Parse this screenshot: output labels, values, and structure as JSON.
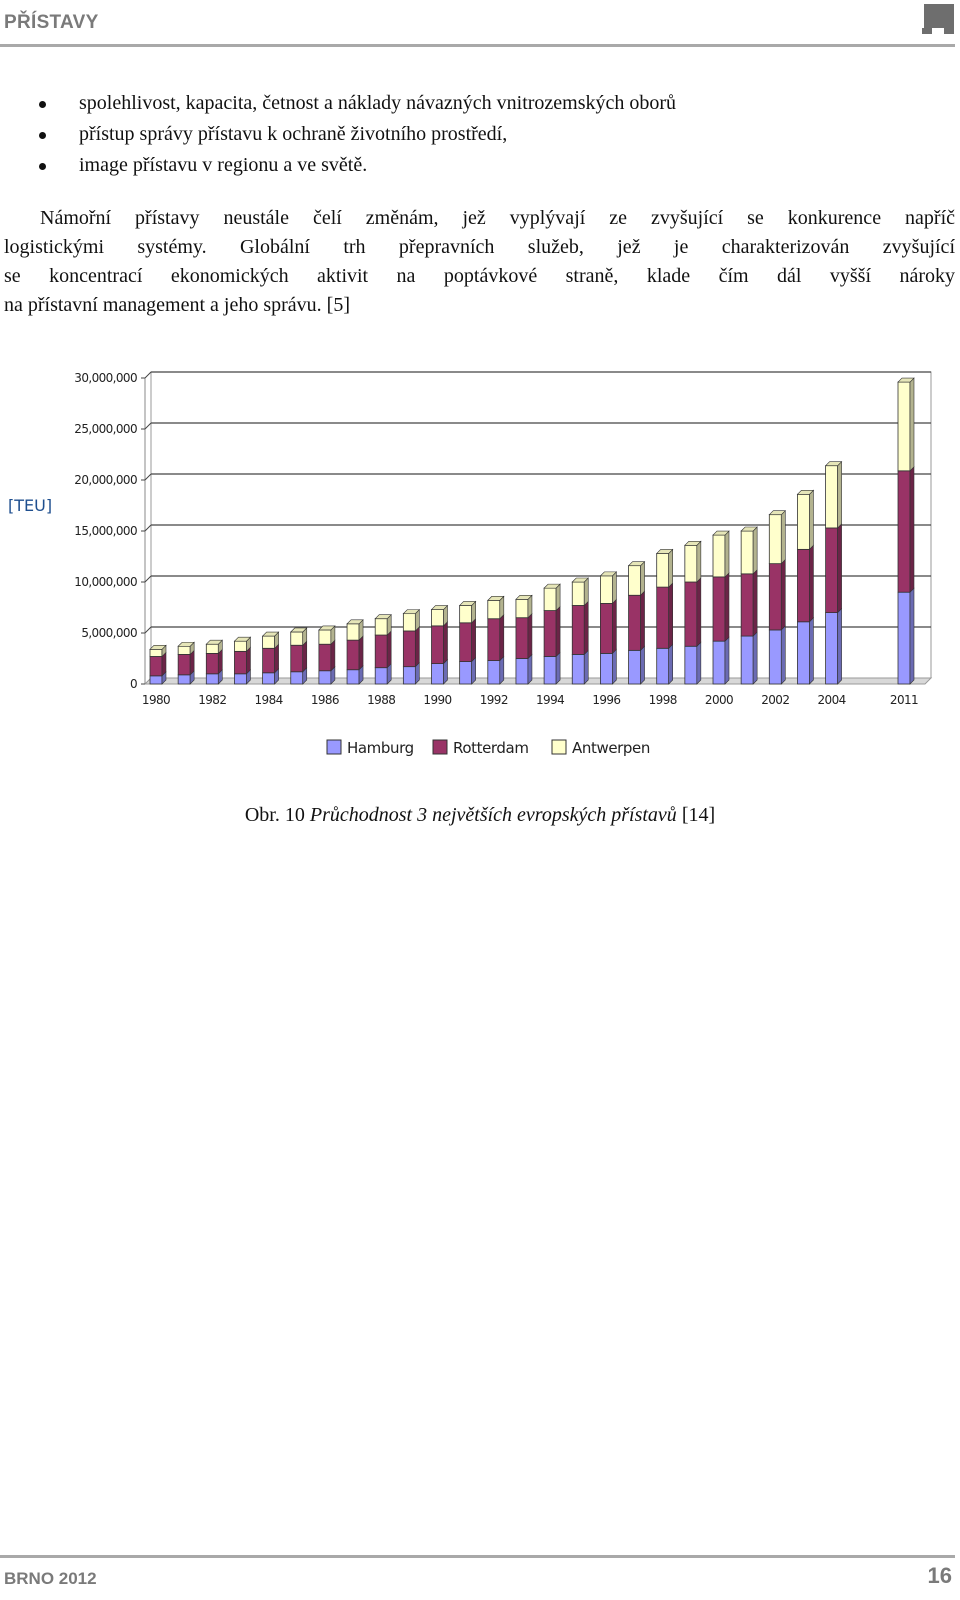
{
  "header": {
    "running_title": "PŘÍSTAVY"
  },
  "bullets": [
    "spolehlivost, kapacita, četnost a náklady návazných vnitrozemských oborů",
    "přístup správy přístavu k ochraně životního prostředí,",
    "image přístavu v regionu a ve světě."
  ],
  "paragraph": {
    "line1": "Námořní přístavy neustále čelí změnám, jež vyplývají ze zvyšující se konkurence napříč",
    "line2": "logistickými systémy. Globální trh přepravních služeb, jež je charakterizován zvyšující",
    "line3": "se koncentrací ekonomických aktivit na poptávkové straně, klade čím dál vyšší nároky",
    "line4": "na přístavní management a jeho správu. [5]"
  },
  "chart_data": {
    "type": "bar",
    "stacked": true,
    "ylabel": "[TEU]",
    "ylim": [
      0,
      30000000
    ],
    "yticks": [
      "0",
      "5,000,000",
      "10,000,000",
      "15,000,000",
      "20,000,000",
      "25,000,000",
      "30,000,000"
    ],
    "x_tick_labels": [
      "1980",
      "1982",
      "1984",
      "1986",
      "1988",
      "1990",
      "1992",
      "1994",
      "1996",
      "1998",
      "2000",
      "2002",
      "2004",
      "2011"
    ],
    "categories": [
      "1980",
      "1981",
      "1982",
      "1983",
      "1984",
      "1985",
      "1986",
      "1987",
      "1988",
      "1989",
      "1990",
      "1991",
      "1992",
      "1993",
      "1994",
      "1995",
      "1996",
      "1997",
      "1998",
      "1999",
      "2000",
      "2001",
      "2002",
      "2003",
      "2004",
      "2011"
    ],
    "series": [
      {
        "name": "Hamburg",
        "color": "#9999ff",
        "values": [
          800000,
          900000,
          1000000,
          1000000,
          1100000,
          1200000,
          1300000,
          1400000,
          1600000,
          1700000,
          2000000,
          2200000,
          2300000,
          2500000,
          2700000,
          2900000,
          3000000,
          3300000,
          3500000,
          3700000,
          4200000,
          4700000,
          5300000,
          6100000,
          7000000,
          9000000
        ]
      },
      {
        "name": "Rotterdam",
        "color": "#993366",
        "values": [
          1900000,
          2000000,
          2000000,
          2200000,
          2400000,
          2600000,
          2600000,
          2900000,
          3200000,
          3500000,
          3700000,
          3800000,
          4100000,
          4000000,
          4500000,
          4800000,
          4900000,
          5400000,
          6000000,
          6300000,
          6300000,
          6100000,
          6500000,
          7100000,
          8300000,
          11900000
        ]
      },
      {
        "name": "Antwerpen",
        "color": "#ffffcc",
        "values": [
          700000,
          800000,
          900000,
          1000000,
          1200000,
          1300000,
          1400000,
          1600000,
          1600000,
          1700000,
          1600000,
          1700000,
          1800000,
          1800000,
          2200000,
          2300000,
          2700000,
          2900000,
          3300000,
          3600000,
          4100000,
          4200000,
          4800000,
          5400000,
          6100000,
          8700000
        ]
      }
    ],
    "legend": "bottom"
  },
  "caption": {
    "prefix": "Obr. 10",
    "title": "Průchodnost 3 největších evropských přístavů",
    "ref": "[14]"
  },
  "footer": {
    "left": "BRNO 2012",
    "page_number": "16"
  }
}
